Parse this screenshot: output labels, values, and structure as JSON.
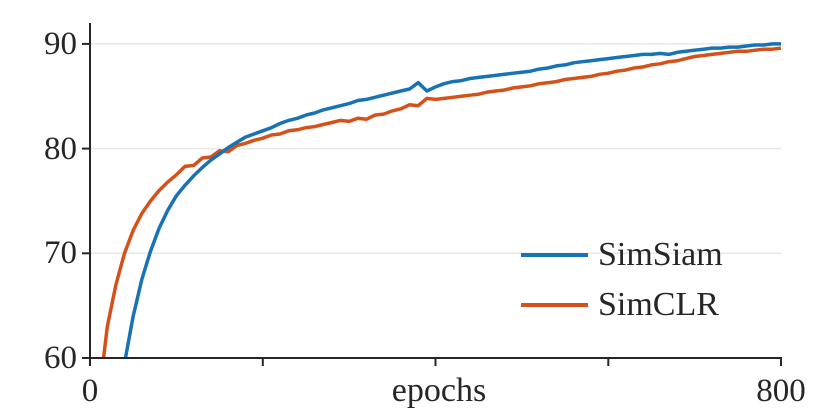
{
  "chart_data": {
    "type": "line",
    "title": "",
    "xlabel": "epochs",
    "ylabel": "",
    "xlim": [
      0,
      800
    ],
    "ylim": [
      60,
      92
    ],
    "xticks": [
      0,
      200,
      400,
      600,
      800
    ],
    "xtick_labels": [
      "0",
      "",
      "",
      "",
      "800"
    ],
    "yticks": [
      60,
      70,
      80,
      90
    ],
    "ytick_labels": [
      "60",
      "70",
      "80",
      "90"
    ],
    "grid": {
      "horizontal": true,
      "vertical": false,
      "color": "#e7e7e7",
      "skip_ytick_at_axis": true
    },
    "axis_color": "#262626",
    "text_color": "#262626",
    "line_width": 3.5,
    "legend": {
      "position": "lower-right-inside"
    },
    "series": [
      {
        "name": "SimSiam",
        "color": "#1873b5",
        "x": [
          30,
          40,
          50,
          60,
          70,
          80,
          90,
          100,
          110,
          120,
          130,
          140,
          150,
          160,
          170,
          180,
          190,
          200,
          210,
          220,
          230,
          240,
          250,
          260,
          270,
          280,
          290,
          300,
          310,
          320,
          330,
          340,
          350,
          360,
          370,
          380,
          390,
          400,
          410,
          420,
          430,
          440,
          450,
          460,
          470,
          480,
          490,
          500,
          510,
          520,
          530,
          540,
          550,
          560,
          570,
          580,
          590,
          600,
          610,
          620,
          630,
          640,
          650,
          660,
          670,
          680,
          690,
          700,
          710,
          720,
          730,
          740,
          750,
          760,
          770,
          780,
          790,
          800
        ],
        "y": [
          53.5,
          59.5,
          64.0,
          67.5,
          70.2,
          72.4,
          74.1,
          75.5,
          76.5,
          77.4,
          78.2,
          78.9,
          79.5,
          80.1,
          80.6,
          81.1,
          81.4,
          81.7,
          82.0,
          82.4,
          82.7,
          82.9,
          83.2,
          83.4,
          83.7,
          83.9,
          84.1,
          84.3,
          84.6,
          84.7,
          84.9,
          85.1,
          85.3,
          85.5,
          85.7,
          86.3,
          85.5,
          85.9,
          86.2,
          86.4,
          86.5,
          86.7,
          86.8,
          86.9,
          87.0,
          87.1,
          87.2,
          87.3,
          87.4,
          87.6,
          87.7,
          87.9,
          88.0,
          88.2,
          88.3,
          88.4,
          88.5,
          88.6,
          88.7,
          88.8,
          88.9,
          89.0,
          89.0,
          89.1,
          89.0,
          89.2,
          89.3,
          89.4,
          89.5,
          89.6,
          89.6,
          89.7,
          89.7,
          89.8,
          89.9,
          89.9,
          90.0,
          90.0
        ]
      },
      {
        "name": "SimCLR",
        "color": "#d4521a",
        "x": [
          10,
          20,
          30,
          40,
          50,
          60,
          70,
          80,
          90,
          100,
          110,
          120,
          130,
          140,
          150,
          160,
          170,
          180,
          190,
          200,
          210,
          220,
          230,
          240,
          250,
          260,
          270,
          280,
          290,
          300,
          310,
          320,
          330,
          340,
          350,
          360,
          370,
          380,
          390,
          400,
          410,
          420,
          430,
          440,
          450,
          460,
          470,
          480,
          490,
          500,
          510,
          520,
          530,
          540,
          550,
          560,
          570,
          580,
          590,
          600,
          610,
          620,
          630,
          640,
          650,
          660,
          670,
          680,
          690,
          700,
          710,
          720,
          730,
          740,
          750,
          760,
          770,
          780,
          790,
          800
        ],
        "y": [
          56.0,
          63.0,
          67.0,
          70.0,
          72.2,
          73.8,
          75.0,
          76.0,
          76.8,
          77.5,
          78.3,
          78.4,
          79.1,
          79.2,
          79.8,
          79.7,
          80.3,
          80.5,
          80.8,
          81.0,
          81.3,
          81.4,
          81.7,
          81.8,
          82.0,
          82.1,
          82.3,
          82.5,
          82.7,
          82.6,
          82.9,
          82.8,
          83.2,
          83.3,
          83.6,
          83.8,
          84.2,
          84.1,
          84.8,
          84.7,
          84.8,
          84.9,
          85.0,
          85.1,
          85.2,
          85.4,
          85.5,
          85.6,
          85.8,
          85.9,
          86.0,
          86.2,
          86.3,
          86.4,
          86.6,
          86.7,
          86.8,
          86.9,
          87.1,
          87.2,
          87.4,
          87.5,
          87.7,
          87.8,
          88.0,
          88.1,
          88.3,
          88.4,
          88.6,
          88.8,
          88.9,
          89.0,
          89.1,
          89.2,
          89.3,
          89.3,
          89.4,
          89.5,
          89.5,
          89.6
        ]
      }
    ]
  }
}
